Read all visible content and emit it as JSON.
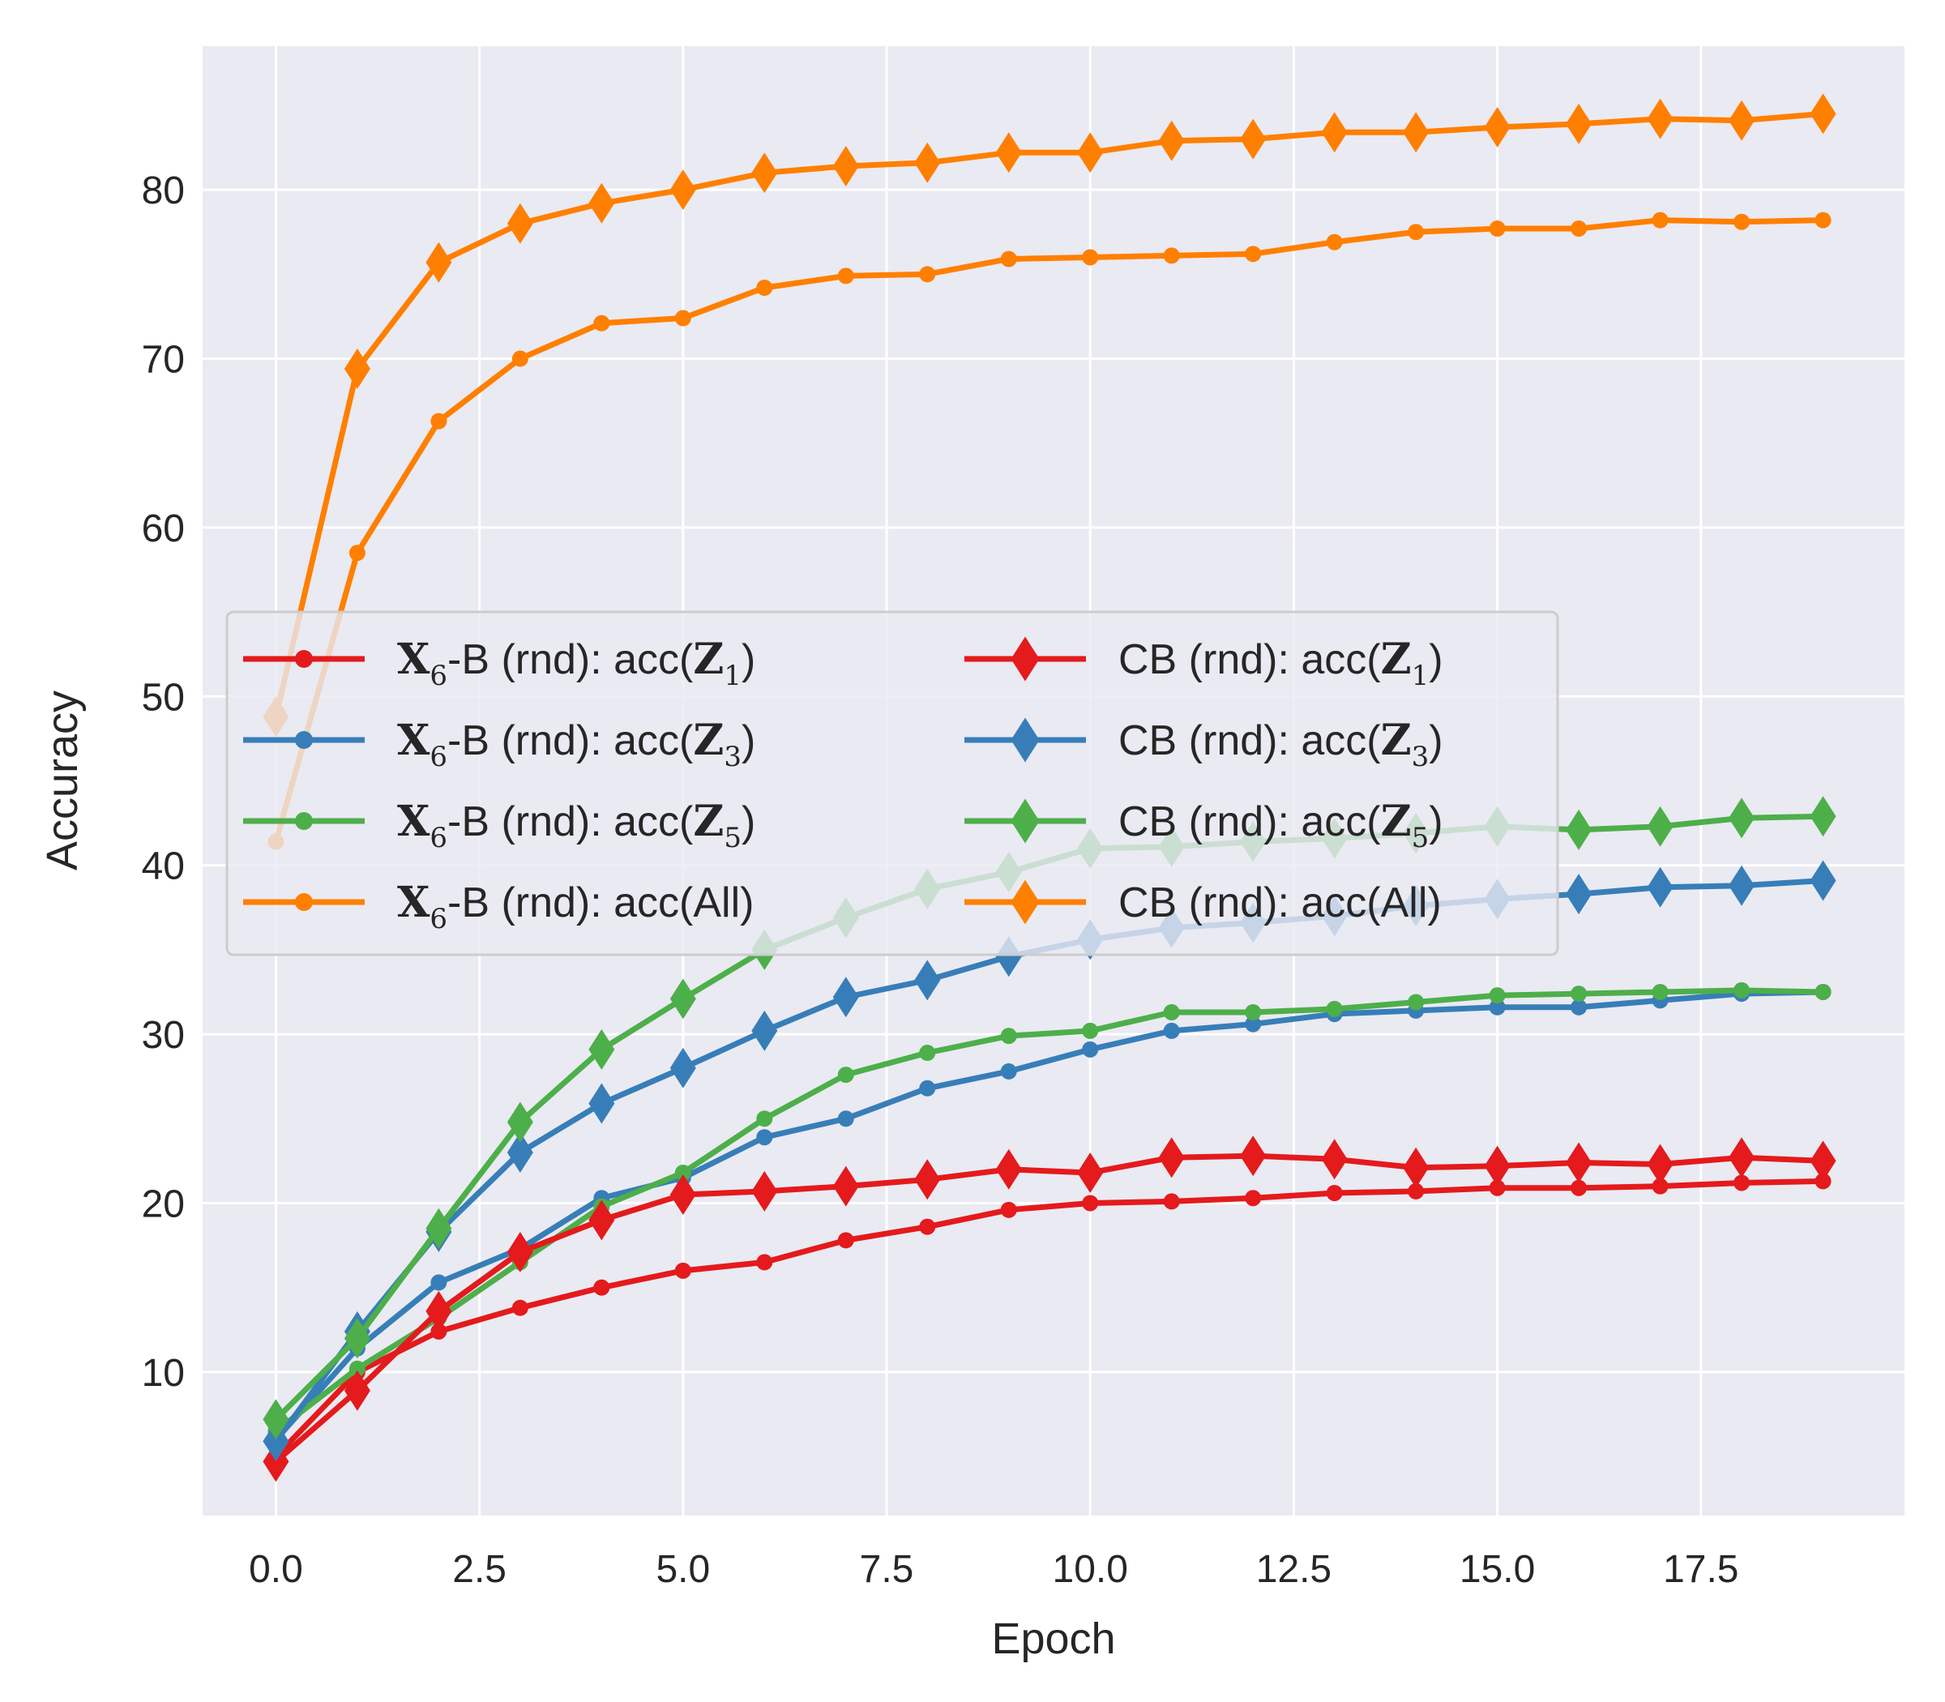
{
  "chart_data": {
    "type": "line",
    "title": "",
    "xlabel": "Epoch",
    "ylabel": "Accuracy",
    "xlim": [
      -0.9,
      20.0
    ],
    "ylim": [
      1.5,
      88.5
    ],
    "xticks": [
      0.0,
      2.5,
      5.0,
      7.5,
      10.0,
      12.5,
      15.0,
      17.5
    ],
    "xtick_labels": [
      "0.0",
      "2.5",
      "5.0",
      "7.5",
      "10.0",
      "12.5",
      "15.0",
      "17.5"
    ],
    "yticks": [
      10,
      20,
      30,
      40,
      50,
      60,
      70,
      80
    ],
    "ytick_labels": [
      "10",
      "20",
      "30",
      "40",
      "50",
      "60",
      "70",
      "80"
    ],
    "grid": true,
    "background": "#eaeaf2",
    "legend_position": "center-left",
    "legend_columns": 2,
    "x": [
      0,
      1,
      2,
      3,
      4,
      5,
      6,
      7,
      8,
      9,
      10,
      11,
      12,
      13,
      14,
      15,
      16,
      17,
      18,
      19
    ],
    "series": [
      {
        "name": "X6-B (rnd): acc(Z1)",
        "label_prefix": "X",
        "label_sub1": "6",
        "label_mid": "-B (rnd): acc(",
        "label_var": "Z",
        "label_sub2": "1",
        "label_end": ")",
        "marker": "circle",
        "color": "#e41a1c",
        "values": [
          5.0,
          10.0,
          12.4,
          13.8,
          15.0,
          16.0,
          16.5,
          17.8,
          18.6,
          19.6,
          20.0,
          20.1,
          20.3,
          20.6,
          20.7,
          20.9,
          20.9,
          21.0,
          21.2,
          21.3
        ]
      },
      {
        "name": "X6-B (rnd): acc(Z3)",
        "label_prefix": "X",
        "label_sub1": "6",
        "label_mid": "-B (rnd): acc(",
        "label_var": "Z",
        "label_sub2": "3",
        "label_end": ")",
        "marker": "circle",
        "color": "#377eb8",
        "values": [
          6.0,
          11.4,
          15.3,
          17.3,
          20.3,
          21.5,
          23.9,
          25.0,
          26.8,
          27.8,
          29.1,
          30.2,
          30.6,
          31.2,
          31.4,
          31.6,
          31.6,
          32.0,
          32.4,
          32.5
        ]
      },
      {
        "name": "X6-B (rnd): acc(Z5)",
        "label_prefix": "X",
        "label_sub1": "6",
        "label_mid": "-B (rnd): acc(",
        "label_var": "Z",
        "label_sub2": "5",
        "label_end": ")",
        "marker": "circle",
        "color": "#4daf4a",
        "values": [
          6.5,
          10.2,
          13.2,
          16.5,
          19.8,
          21.8,
          25.0,
          27.6,
          28.9,
          29.9,
          30.2,
          31.3,
          31.3,
          31.5,
          31.9,
          32.3,
          32.4,
          32.5,
          32.6,
          32.5
        ]
      },
      {
        "name": "X6-B (rnd): acc(All)",
        "label_prefix": "X",
        "label_sub1": "6",
        "label_mid": "-B (rnd): acc(All)",
        "label_var": "",
        "label_sub2": "",
        "label_end": "",
        "marker": "circle",
        "color": "#ff7f00",
        "values": [
          41.4,
          58.5,
          66.3,
          70.0,
          72.1,
          72.4,
          74.2,
          74.9,
          75.0,
          75.9,
          76.0,
          76.1,
          76.2,
          76.9,
          77.5,
          77.7,
          77.7,
          78.2,
          78.1,
          78.2
        ]
      },
      {
        "name": "CB (rnd): acc(Z1)",
        "label_prefix": "",
        "label_sub1": "",
        "label_mid": "CB (rnd): acc(",
        "label_var": "Z",
        "label_sub2": "1",
        "label_end": ")",
        "marker": "diamond",
        "color": "#e41a1c",
        "values": [
          4.7,
          8.9,
          13.6,
          17.1,
          19.0,
          20.5,
          20.7,
          21.0,
          21.4,
          22.0,
          21.8,
          22.7,
          22.8,
          22.6,
          22.1,
          22.2,
          22.4,
          22.3,
          22.7,
          22.5
        ]
      },
      {
        "name": "CB (rnd): acc(Z3)",
        "label_prefix": "",
        "label_sub1": "",
        "label_mid": "CB (rnd): acc(",
        "label_var": "Z",
        "label_sub2": "3",
        "label_end": ")",
        "marker": "diamond",
        "color": "#377eb8",
        "values": [
          5.9,
          12.4,
          18.3,
          23.0,
          25.9,
          28.0,
          30.2,
          32.2,
          33.2,
          34.6,
          35.6,
          36.3,
          36.6,
          37.0,
          37.6,
          38.0,
          38.3,
          38.7,
          38.8,
          39.1
        ]
      },
      {
        "name": "CB (rnd): acc(Z5)",
        "label_prefix": "",
        "label_sub1": "",
        "label_mid": "CB (rnd): acc(",
        "label_var": "Z",
        "label_sub2": "5",
        "label_end": ")",
        "marker": "diamond",
        "color": "#4daf4a",
        "values": [
          7.2,
          12.0,
          18.5,
          24.8,
          29.1,
          32.1,
          35.0,
          36.9,
          38.6,
          39.6,
          41.0,
          41.1,
          41.4,
          41.6,
          41.9,
          42.3,
          42.1,
          42.3,
          42.8,
          42.9
        ]
      },
      {
        "name": "CB (rnd): acc(All)",
        "label_prefix": "",
        "label_sub1": "",
        "label_mid": "CB (rnd): acc(All)",
        "label_var": "",
        "label_sub2": "",
        "label_end": "",
        "marker": "diamond",
        "color": "#ff7f00",
        "values": [
          48.8,
          69.4,
          75.7,
          78.0,
          79.2,
          80.0,
          81.0,
          81.4,
          81.6,
          82.2,
          82.2,
          82.9,
          83.0,
          83.4,
          83.4,
          83.7,
          83.9,
          84.2,
          84.1,
          84.5
        ]
      }
    ]
  }
}
